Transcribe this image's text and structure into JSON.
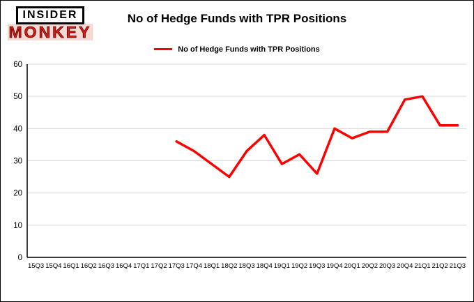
{
  "logo": {
    "line1": "INSIDER",
    "line2": "MONKEY"
  },
  "title": "No of Hedge Funds with TPR Positions",
  "legend": {
    "label": "No of Hedge Funds with TPR Positions"
  },
  "chart_data": {
    "type": "line",
    "title": "No of Hedge Funds with TPR Positions",
    "categories": [
      "15Q3",
      "15Q4",
      "16Q1",
      "16Q2",
      "16Q3",
      "16Q4",
      "17Q1",
      "17Q2",
      "17Q3",
      "17Q4",
      "18Q1",
      "18Q2",
      "18Q3",
      "18Q4",
      "19Q1",
      "19Q2",
      "19Q3",
      "19Q4",
      "20Q1",
      "20Q2",
      "20Q3",
      "20Q4",
      "21Q1",
      "21Q2",
      "21Q3"
    ],
    "series": [
      {
        "name": "No of Hedge Funds with TPR Positions",
        "color": "#ff0000",
        "values": [
          null,
          null,
          null,
          null,
          null,
          null,
          null,
          null,
          36,
          33,
          29,
          25,
          33,
          38,
          29,
          32,
          26,
          40,
          37,
          39,
          39,
          49,
          50,
          41,
          41
        ]
      }
    ],
    "ylim": [
      0,
      60
    ],
    "yticks": [
      0,
      10,
      20,
      30,
      40,
      50,
      60
    ],
    "grid": true,
    "grid_color": "#d9d9d9",
    "axis_color": "#000000",
    "legend_position": "top"
  }
}
